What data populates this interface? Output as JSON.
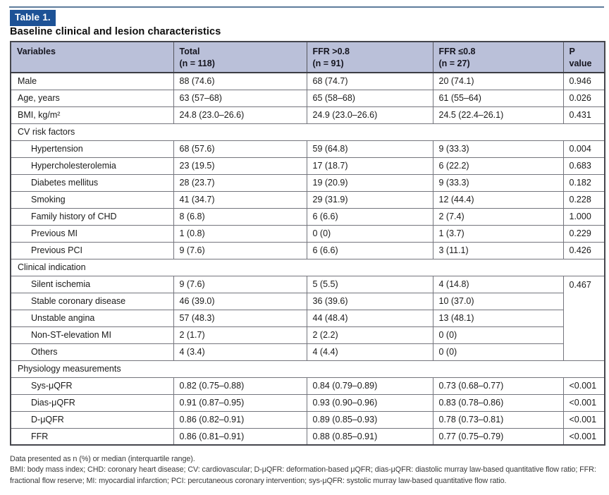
{
  "header": {
    "table_label": "Table 1.",
    "title": "Baseline clinical and lesion characteristics"
  },
  "colors": {
    "badge_bg": "#1d5296",
    "header_row_bg": "#bac0d9",
    "top_rule": "#5f7d9c",
    "outer_border": "#45464d",
    "inner_border": "#74757d"
  },
  "table": {
    "columns": [
      {
        "label": "Variables",
        "sub": ""
      },
      {
        "label": "Total",
        "sub": "(n = 118)"
      },
      {
        "label": "FFR >0.8",
        "sub": "(n = 91)"
      },
      {
        "label": "FFR ≤0.8",
        "sub": "(n = 27)"
      },
      {
        "label": "P value",
        "sub": ""
      }
    ],
    "rows": [
      {
        "label": "Male",
        "values": [
          "88 (74.6)",
          "68 (74.7)",
          "20 (74.1)"
        ],
        "p": "0.946"
      },
      {
        "label": "Age, years",
        "values": [
          "63 (57–68)",
          "65 (58–68)",
          "61 (55–64)"
        ],
        "p": "0.026"
      },
      {
        "label": "BMI, kg/m²",
        "values": [
          "24.8 (23.0–26.6)",
          "24.9 (23.0–26.6)",
          "24.5 (22.4–26.1)"
        ],
        "p": "0.431"
      },
      {
        "label": "CV risk factors",
        "section": true
      },
      {
        "label": "Hypertension",
        "indent": true,
        "values": [
          "68 (57.6)",
          "59 (64.8)",
          "9 (33.3)"
        ],
        "p": "0.004"
      },
      {
        "label": "Hypercholesterolemia",
        "indent": true,
        "values": [
          "23 (19.5)",
          "17 (18.7)",
          "6 (22.2)"
        ],
        "p": "0.683"
      },
      {
        "label": "Diabetes mellitus",
        "indent": true,
        "values": [
          "28 (23.7)",
          "19 (20.9)",
          "9 (33.3)"
        ],
        "p": "0.182"
      },
      {
        "label": "Smoking",
        "indent": true,
        "values": [
          "41 (34.7)",
          "29 (31.9)",
          "12 (44.4)"
        ],
        "p": "0.228"
      },
      {
        "label": "Family history of CHD",
        "indent": true,
        "values": [
          "8 (6.8)",
          "6 (6.6)",
          "2 (7.4)"
        ],
        "p": "1.000"
      },
      {
        "label": "Previous MI",
        "indent": true,
        "values": [
          "1 (0.8)",
          "0 (0)",
          "1 (3.7)"
        ],
        "p": "0.229"
      },
      {
        "label": "Previous PCI",
        "indent": true,
        "values": [
          "9 (7.6)",
          "6 (6.6)",
          "3 (11.1)"
        ],
        "p": "0.426"
      },
      {
        "label": "Clinical indication",
        "section": true
      },
      {
        "label": "Silent ischemia",
        "indent": true,
        "values": [
          "9 (7.6)",
          "5 (5.5)",
          "4 (14.8)"
        ],
        "p": "0.467",
        "p_rowspan": 5
      },
      {
        "label": "Stable coronary disease",
        "indent": true,
        "values": [
          "46 (39.0)",
          "36 (39.6)",
          "10 (37.0)"
        ]
      },
      {
        "label": "Unstable angina",
        "indent": true,
        "values": [
          "57 (48.3)",
          "44 (48.4)",
          "13 (48.1)"
        ]
      },
      {
        "label": "Non-ST-elevation MI",
        "indent": true,
        "values": [
          "2 (1.7)",
          "2 (2.2)",
          "0 (0)"
        ]
      },
      {
        "label": "Others",
        "indent": true,
        "values": [
          "4 (3.4)",
          "4 (4.4)",
          "0 (0)"
        ]
      },
      {
        "label": "Physiology measurements",
        "section": true
      },
      {
        "label": "Sys-μQFR",
        "indent": true,
        "values": [
          "0.82 (0.75–0.88)",
          "0.84 (0.79–0.89)",
          "0.73 (0.68–0.77)"
        ],
        "p": "<0.001"
      },
      {
        "label": "Dias-μQFR",
        "indent": true,
        "values": [
          "0.91 (0.87–0.95)",
          "0.93 (0.90–0.96)",
          "0.83 (0.78–0.86)"
        ],
        "p": "<0.001"
      },
      {
        "label": "D-μQFR",
        "indent": true,
        "values": [
          "0.86 (0.82–0.91)",
          "0.89 (0.85–0.93)",
          "0.78 (0.73–0.81)"
        ],
        "p": "<0.001"
      },
      {
        "label": "FFR",
        "indent": true,
        "values": [
          "0.86 (0.81–0.91)",
          "0.88 (0.85–0.91)",
          "0.77 (0.75–0.79)"
        ],
        "p": "<0.001"
      }
    ]
  },
  "footnotes": [
    "Data presented as n (%) or median (interquartile range).",
    "BMI: body mass index; CHD: coronary heart disease; CV: cardiovascular; D-μQFR: deformation-based μQFR; dias-μQFR: diastolic murray law-based quantitative flow ratio; FFR: fractional flow reserve; MI: myocardial infarction; PCI: percutaneous coronary intervention; sys-μQFR: systolic murray law-based quantitative flow ratio."
  ]
}
